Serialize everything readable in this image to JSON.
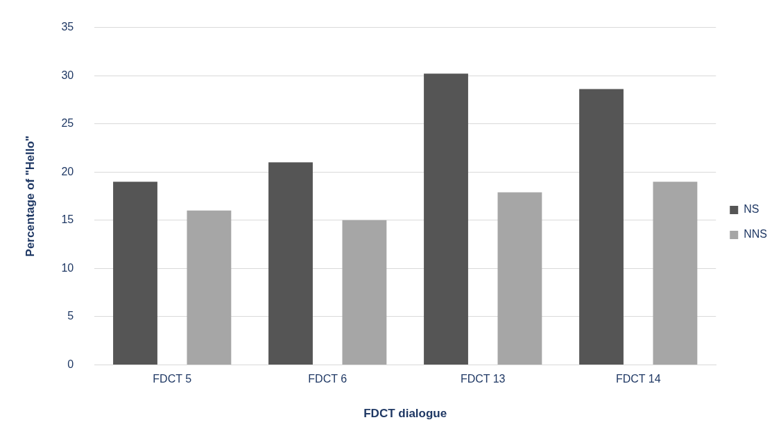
{
  "chart_data": {
    "type": "bar",
    "xlabel": "FDCT dialogue",
    "ylabel": "Percentage of \"Hello\"",
    "categories": [
      "FDCT 5",
      "FDCT 6",
      "FDCT 13",
      "FDCT 14"
    ],
    "series": [
      {
        "name": "NS",
        "color": "#555555",
        "values": [
          19,
          21,
          30.2,
          28.6
        ]
      },
      {
        "name": "NNS",
        "color": "#a6a6a6",
        "values": [
          16,
          15,
          17.9,
          19
        ]
      }
    ],
    "ylim": [
      0,
      35
    ],
    "yticks": [
      0,
      5,
      10,
      15,
      20,
      25,
      30,
      35
    ],
    "grid": "y",
    "legend": "right"
  }
}
